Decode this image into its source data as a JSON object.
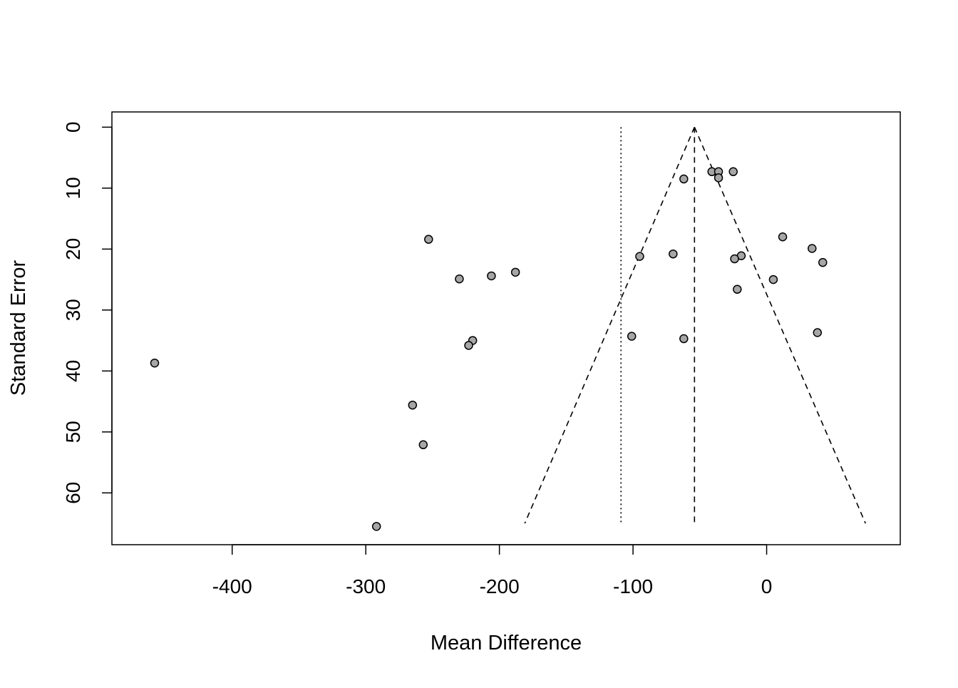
{
  "chart_data": {
    "type": "scatter",
    "subtype": "funnel-plot",
    "title": "",
    "xlabel": "Mean Difference",
    "ylabel": "Standard Error",
    "xlim": [
      -490,
      100
    ],
    "ylim": [
      68.5,
      -2.5
    ],
    "y_reversed": true,
    "x_ticks": [
      -400,
      -300,
      -200,
      -100,
      0
    ],
    "x_tick_labels": [
      "-400",
      "-300",
      "-200",
      "-100",
      "0"
    ],
    "y_ticks": [
      0,
      10,
      20,
      30,
      40,
      50,
      60
    ],
    "y_tick_labels": [
      "0",
      "10",
      "20",
      "30",
      "40",
      "50",
      "60"
    ],
    "grid": false,
    "legend": "none",
    "point_fill": "#a6a6a6",
    "point_stroke": "#000000",
    "pooled_estimate": -54,
    "reference_line_dotted": -109,
    "funnel_apex": {
      "x": -54,
      "y": 0
    },
    "funnel_bottom": {
      "y": 65,
      "x_left": -181,
      "x_right": 74
    },
    "points": [
      {
        "x": -41,
        "y": 7.3
      },
      {
        "x": -36,
        "y": 7.3
      },
      {
        "x": -25,
        "y": 7.3
      },
      {
        "x": -36,
        "y": 8.3
      },
      {
        "x": -62,
        "y": 8.5
      },
      {
        "x": -253,
        "y": 18.4
      },
      {
        "x": 12,
        "y": 18.0
      },
      {
        "x": 34,
        "y": 19.9
      },
      {
        "x": -70,
        "y": 20.8
      },
      {
        "x": -95,
        "y": 21.2
      },
      {
        "x": -19,
        "y": 21.1
      },
      {
        "x": -24,
        "y": 21.6
      },
      {
        "x": 42,
        "y": 22.2
      },
      {
        "x": -188,
        "y": 23.8
      },
      {
        "x": -206,
        "y": 24.4
      },
      {
        "x": -230,
        "y": 24.9
      },
      {
        "x": 5,
        "y": 25.0
      },
      {
        "x": -22,
        "y": 26.6
      },
      {
        "x": -101,
        "y": 34.3
      },
      {
        "x": -62,
        "y": 34.7
      },
      {
        "x": 38,
        "y": 33.7
      },
      {
        "x": -220,
        "y": 35.0
      },
      {
        "x": -223,
        "y": 35.8
      },
      {
        "x": -458,
        "y": 38.7
      },
      {
        "x": -265,
        "y": 45.6
      },
      {
        "x": -257,
        "y": 52.1
      },
      {
        "x": -292,
        "y": 65.5
      }
    ]
  }
}
